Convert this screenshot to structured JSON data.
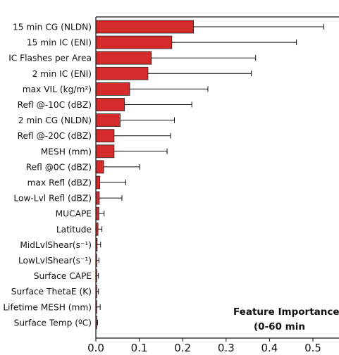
{
  "chart_data": {
    "type": "bar",
    "orientation": "horizontal",
    "categories": [
      "15 min CG (NLDN)",
      "15 min IC (ENI)",
      "IC Flashes per Area",
      "2 min IC (ENI)",
      "max VIL (kg/m²)",
      "Refl @-10C (dBZ)",
      "2 min CG (NLDN)",
      "Refl @-20C (dBZ)",
      "MESH (mm)",
      "Refl @0C (dBZ)",
      "max Refl (dBZ)",
      "Low-Lvl Refl (dBZ)",
      "MUCAPE",
      "Latitude",
      "MidLvlShear(s⁻¹)",
      "LowLvlShear(s⁻¹)",
      "Surface CAPE",
      "Surface ThetaE (K)",
      "Lifetime MESH (mm)",
      "Surface Temp (ºC)"
    ],
    "values": [
      0.225,
      0.175,
      0.128,
      0.12,
      0.078,
      0.066,
      0.056,
      0.042,
      0.042,
      0.018,
      0.009,
      0.008,
      0.007,
      0.005,
      0.003,
      0.002,
      0.002,
      0.001,
      0.001,
      0.001
    ],
    "errors": [
      0.3,
      0.287,
      0.24,
      0.238,
      0.18,
      0.155,
      0.125,
      0.13,
      0.122,
      0.083,
      0.06,
      0.052,
      0.012,
      0.009,
      0.008,
      0.005,
      0.004,
      0.005,
      0.009,
      0.003
    ],
    "xlim": [
      0,
      0.56
    ],
    "xticks": [
      "0.0",
      "0.1",
      "0.2",
      "0.3",
      "0.4",
      "0.5"
    ],
    "xtick_values": [
      0,
      0.1,
      0.2,
      0.3,
      0.4,
      0.5
    ],
    "annotation": [
      "Feature Importance",
      "(0-60 min"
    ],
    "bar_color": "#d42a2a",
    "bar_edge_color": "#222222",
    "grid": false
  }
}
